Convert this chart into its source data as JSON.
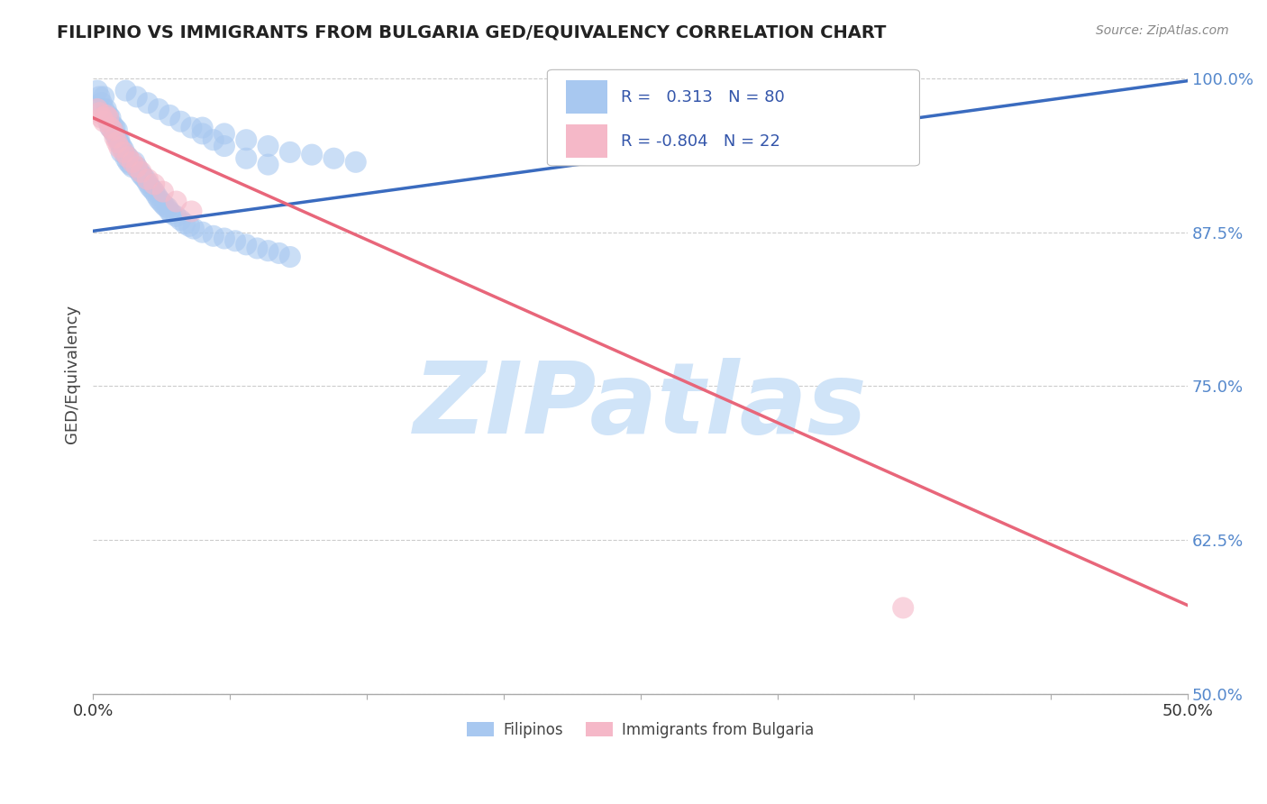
{
  "title": "FILIPINO VS IMMIGRANTS FROM BULGARIA GED/EQUIVALENCY CORRELATION CHART",
  "source": "Source: ZipAtlas.com",
  "ylabel": "GED/Equivalency",
  "xmin": 0.0,
  "xmax": 0.5,
  "ymin": 0.5,
  "ymax": 1.02,
  "yticks": [
    0.5,
    0.625,
    0.75,
    0.875,
    1.0
  ],
  "ytick_labels": [
    "50.0%",
    "62.5%",
    "75.0%",
    "87.5%",
    "100.0%"
  ],
  "xticks": [
    0.0,
    0.0625,
    0.125,
    0.1875,
    0.25,
    0.3125,
    0.375,
    0.4375,
    0.5
  ],
  "blue_R": 0.313,
  "blue_N": 80,
  "pink_R": -0.804,
  "pink_N": 22,
  "blue_label": "Filipinos",
  "pink_label": "Immigrants from Bulgaria",
  "blue_color": "#a8c8f0",
  "pink_color": "#f5b8c8",
  "blue_line_color": "#3a6bbf",
  "pink_line_color": "#e8667a",
  "watermark": "ZIPatlas",
  "watermark_color": "#d0e4f8",
  "blue_x": [
    0.002,
    0.003,
    0.004,
    0.005,
    0.005,
    0.006,
    0.006,
    0.007,
    0.007,
    0.008,
    0.008,
    0.009,
    0.009,
    0.01,
    0.01,
    0.011,
    0.011,
    0.012,
    0.012,
    0.013,
    0.013,
    0.014,
    0.015,
    0.015,
    0.016,
    0.016,
    0.017,
    0.018,
    0.019,
    0.02,
    0.021,
    0.022,
    0.023,
    0.024,
    0.025,
    0.026,
    0.027,
    0.028,
    0.029,
    0.03,
    0.031,
    0.032,
    0.033,
    0.034,
    0.035,
    0.036,
    0.038,
    0.04,
    0.042,
    0.044,
    0.046,
    0.05,
    0.055,
    0.06,
    0.065,
    0.07,
    0.075,
    0.08,
    0.085,
    0.09,
    0.05,
    0.06,
    0.07,
    0.08,
    0.09,
    0.1,
    0.11,
    0.12,
    0.015,
    0.02,
    0.025,
    0.03,
    0.035,
    0.04,
    0.045,
    0.05,
    0.055,
    0.06,
    0.07,
    0.08
  ],
  "blue_y": [
    0.99,
    0.985,
    0.98,
    0.975,
    0.985,
    0.97,
    0.975,
    0.97,
    0.965,
    0.968,
    0.96,
    0.962,
    0.958,
    0.96,
    0.955,
    0.958,
    0.952,
    0.95,
    0.948,
    0.945,
    0.94,
    0.942,
    0.938,
    0.935,
    0.932,
    0.936,
    0.93,
    0.928,
    0.932,
    0.928,
    0.925,
    0.922,
    0.92,
    0.918,
    0.915,
    0.912,
    0.91,
    0.908,
    0.905,
    0.902,
    0.9,
    0.898,
    0.896,
    0.895,
    0.892,
    0.89,
    0.888,
    0.885,
    0.882,
    0.88,
    0.878,
    0.875,
    0.872,
    0.87,
    0.868,
    0.865,
    0.862,
    0.86,
    0.858,
    0.855,
    0.96,
    0.955,
    0.95,
    0.945,
    0.94,
    0.938,
    0.935,
    0.932,
    0.99,
    0.985,
    0.98,
    0.975,
    0.97,
    0.965,
    0.96,
    0.955,
    0.95,
    0.945,
    0.935,
    0.93
  ],
  "pink_x": [
    0.002,
    0.003,
    0.004,
    0.005,
    0.006,
    0.007,
    0.008,
    0.009,
    0.01,
    0.011,
    0.012,
    0.014,
    0.016,
    0.018,
    0.02,
    0.022,
    0.025,
    0.028,
    0.032,
    0.038,
    0.045,
    0.37
  ],
  "pink_y": [
    0.975,
    0.972,
    0.968,
    0.965,
    0.97,
    0.968,
    0.96,
    0.958,
    0.952,
    0.948,
    0.944,
    0.94,
    0.936,
    0.932,
    0.928,
    0.924,
    0.918,
    0.914,
    0.908,
    0.9,
    0.892,
    0.57
  ],
  "blue_trend_x": [
    0.0,
    0.5
  ],
  "blue_trend_y": [
    0.876,
    0.998
  ],
  "pink_trend_x": [
    0.0,
    0.5
  ],
  "pink_trend_y": [
    0.968,
    0.572
  ]
}
